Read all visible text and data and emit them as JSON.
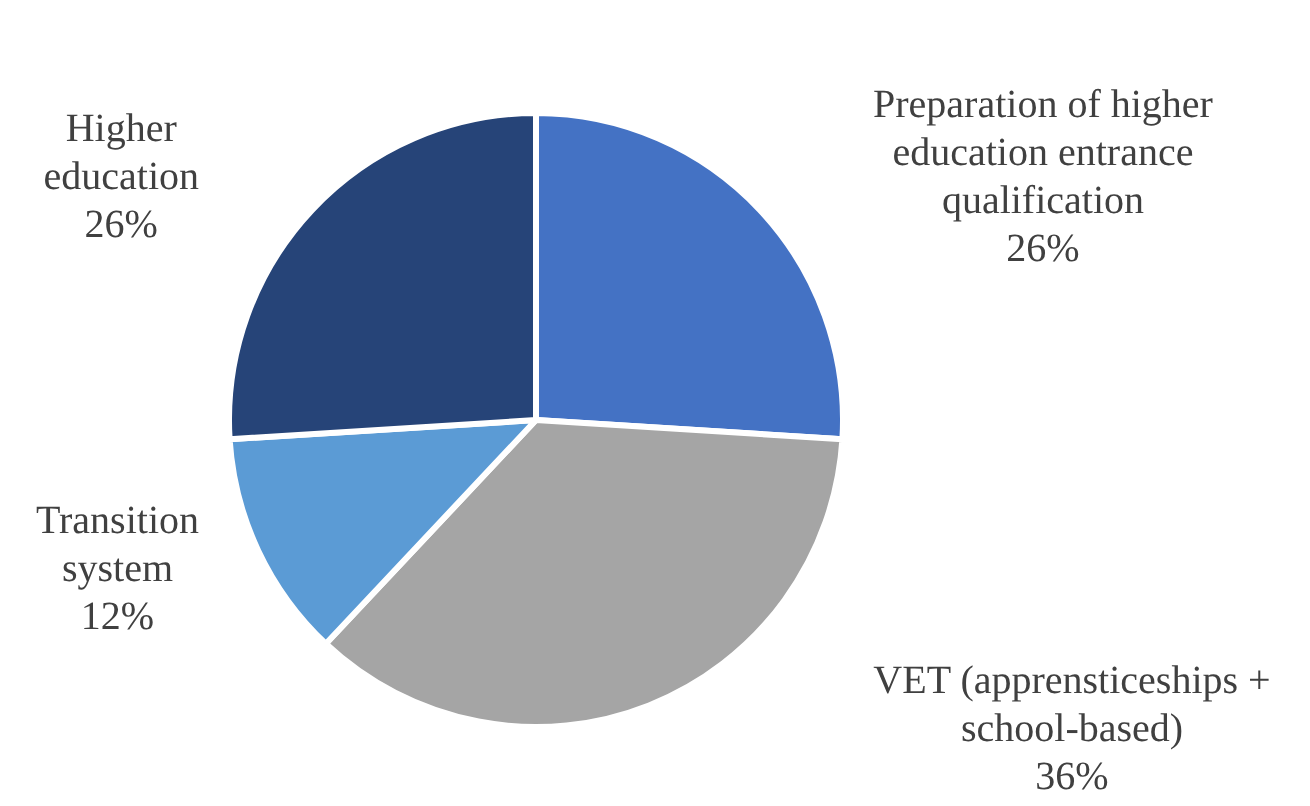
{
  "chart_data": {
    "type": "pie",
    "categories": [
      "Preparation of higher education entrance qualification",
      "VET (apprensticeships + school-based)",
      "Transition system",
      "Higher education"
    ],
    "values": [
      26,
      36,
      12,
      26
    ],
    "colors": [
      "#4472c4",
      "#a5a5a5",
      "#5b9bd5",
      "#264478"
    ],
    "value_labels": [
      "26%",
      "36%",
      "12%",
      "26%"
    ],
    "legend": false
  }
}
